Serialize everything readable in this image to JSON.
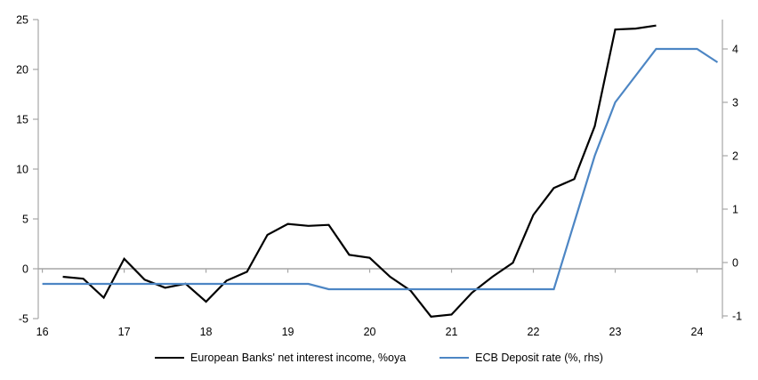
{
  "chart_data": {
    "type": "line",
    "title": "",
    "xlabel": "",
    "ylabel_left": "",
    "ylabel_right": "",
    "grid": "zero-line-only",
    "legend_position": "bottom",
    "x_axis": {
      "ticks": [
        16,
        17,
        18,
        19,
        20,
        21,
        22,
        23,
        24
      ],
      "lim": [
        15.95,
        24.31
      ]
    },
    "y_axis_left": {
      "ticks": [
        -5,
        0,
        5,
        10,
        15,
        20,
        25
      ],
      "lim": [
        -5,
        25
      ]
    },
    "y_axis_right": {
      "ticks": [
        -1,
        0,
        1,
        2,
        3,
        4
      ],
      "lim": [
        -1.05,
        4.55
      ]
    },
    "series": [
      {
        "name": "European Banks' net interest income, %oya",
        "axis": "left",
        "color": "#000000",
        "x": [
          16.25,
          16.5,
          16.75,
          17.0,
          17.25,
          17.5,
          17.75,
          18.0,
          18.25,
          18.5,
          18.75,
          19.0,
          19.25,
          19.5,
          19.75,
          20.0,
          20.25,
          20.5,
          20.75,
          21.0,
          21.25,
          21.5,
          21.75,
          22.0,
          22.25,
          22.5,
          22.75,
          23.0,
          23.25,
          23.5
        ],
        "values": [
          -0.8,
          -1.0,
          -2.9,
          1.0,
          -1.1,
          -1.9,
          -1.5,
          -3.3,
          -1.2,
          -0.3,
          3.4,
          4.5,
          4.3,
          4.4,
          1.4,
          1.1,
          -0.8,
          -2.2,
          -4.8,
          -4.6,
          -2.4,
          -0.8,
          0.6,
          5.4,
          8.1,
          9.0,
          14.3,
          24.0,
          24.1,
          24.4
        ]
      },
      {
        "name": "ECB Deposit rate (%, rhs)",
        "axis": "right",
        "color": "#4d86c4",
        "x": [
          16.0,
          16.25,
          16.5,
          16.75,
          17.0,
          17.25,
          17.5,
          17.75,
          18.0,
          18.25,
          18.5,
          18.75,
          19.0,
          19.25,
          19.5,
          19.75,
          20.0,
          20.25,
          20.5,
          20.75,
          21.0,
          21.25,
          21.5,
          21.75,
          22.0,
          22.25,
          22.5,
          22.75,
          23.0,
          23.25,
          23.5,
          23.75,
          24.0,
          24.25
        ],
        "values": [
          -0.4,
          -0.4,
          -0.4,
          -0.4,
          -0.4,
          -0.4,
          -0.4,
          -0.4,
          -0.4,
          -0.4,
          -0.4,
          -0.4,
          -0.4,
          -0.4,
          -0.5,
          -0.5,
          -0.5,
          -0.5,
          -0.5,
          -0.5,
          -0.5,
          -0.5,
          -0.5,
          -0.5,
          -0.5,
          -0.5,
          0.75,
          2.0,
          3.0,
          3.5,
          4.0,
          4.0,
          4.0,
          3.75
        ]
      }
    ]
  },
  "legend": {
    "items": [
      {
        "label": "European Banks' net interest income, %oya"
      },
      {
        "label": "ECB Deposit rate (%, rhs)"
      }
    ]
  },
  "colors": {
    "background": "#ffffff",
    "axis": "#a6a6a6",
    "zero_line": "#a6a6a6",
    "text": "#000000"
  }
}
